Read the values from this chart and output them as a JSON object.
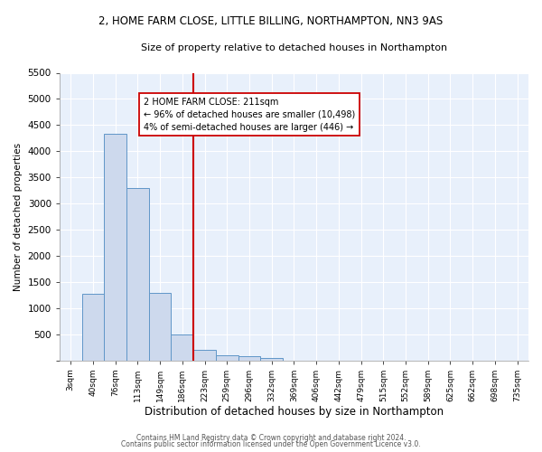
{
  "title1": "2, HOME FARM CLOSE, LITTLE BILLING, NORTHAMPTON, NN3 9AS",
  "title2": "Size of property relative to detached houses in Northampton",
  "xlabel": "Distribution of detached houses by size in Northampton",
  "ylabel": "Number of detached properties",
  "footer1": "Contains HM Land Registry data © Crown copyright and database right 2024.",
  "footer2": "Contains public sector information licensed under the Open Government Licence v3.0.",
  "bin_labels": [
    "3sqm",
    "40sqm",
    "76sqm",
    "113sqm",
    "149sqm",
    "186sqm",
    "223sqm",
    "259sqm",
    "296sqm",
    "332sqm",
    "369sqm",
    "406sqm",
    "442sqm",
    "479sqm",
    "515sqm",
    "552sqm",
    "589sqm",
    "625sqm",
    "662sqm",
    "698sqm",
    "735sqm"
  ],
  "bar_values": [
    0,
    1270,
    4330,
    3290,
    1290,
    490,
    200,
    95,
    80,
    50,
    0,
    0,
    0,
    0,
    0,
    0,
    0,
    0,
    0,
    0,
    0
  ],
  "bar_color": "#cdd9ed",
  "bar_edge_color": "#6096c8",
  "vline_x_idx": 6,
  "vline_color": "#cc0000",
  "annotation_line1": "2 HOME FARM CLOSE: 211sqm",
  "annotation_line2": "← 96% of detached houses are smaller (10,498)",
  "annotation_line3": "4% of semi-detached houses are larger (446) →",
  "annotation_box_color": "#ffffff",
  "annotation_box_edge": "#cc0000",
  "ylim": [
    0,
    5500
  ],
  "yticks": [
    0,
    500,
    1000,
    1500,
    2000,
    2500,
    3000,
    3500,
    4000,
    4500,
    5000,
    5500
  ],
  "background_color": "#e8f0fb",
  "fig_bg": "#ffffff",
  "grid_color": "#ffffff",
  "title1_fontsize": 8.5,
  "title2_fontsize": 8.0,
  "xlabel_fontsize": 8.5,
  "ylabel_fontsize": 7.5,
  "xtick_fontsize": 6.5,
  "ytick_fontsize": 7.5,
  "footer_fontsize": 5.5
}
